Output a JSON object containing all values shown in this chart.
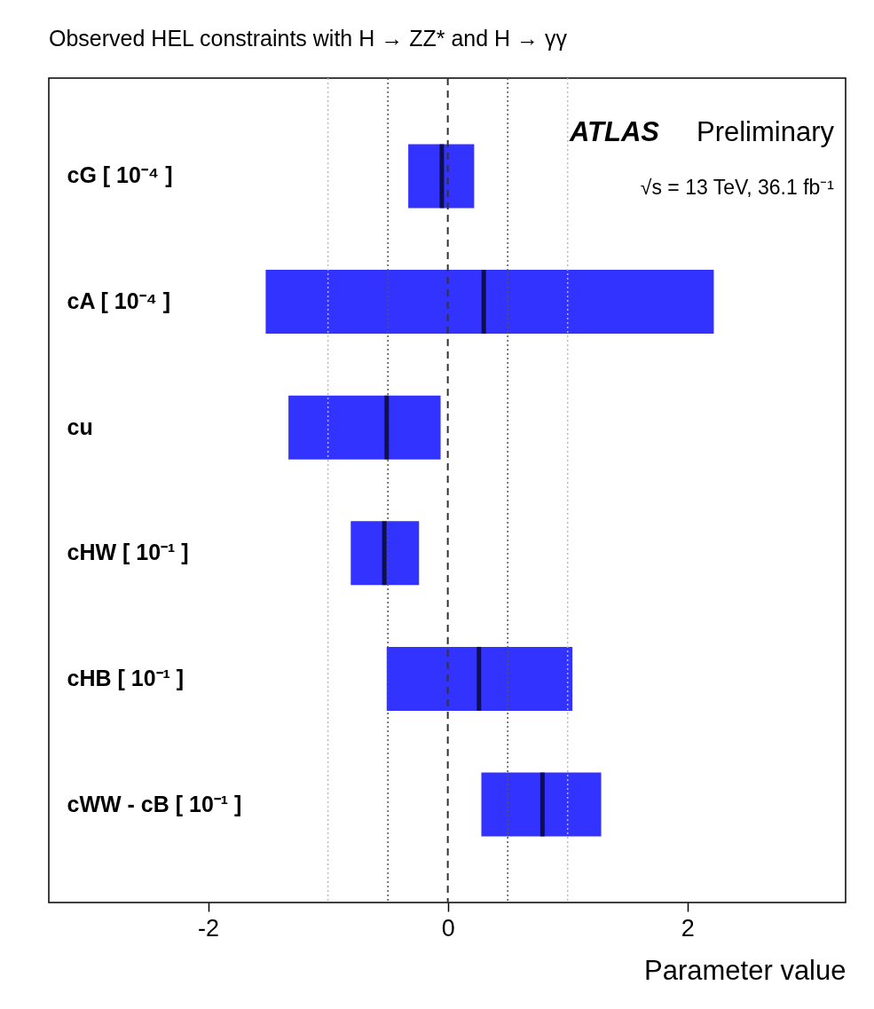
{
  "chart_data": {
    "type": "box",
    "orientation": "horizontal",
    "title": "Observed HEL constraints with H → ZZ* and H → γγ",
    "xlabel": "Parameter value",
    "categories": [
      "cG [ 10⁻⁴ ]",
      "cA [ 10⁻⁴ ]",
      "cu",
      "cHW [ 10⁻¹ ]",
      "cHB [ 10⁻¹ ]",
      "cWW - cB [ 10⁻¹ ]"
    ],
    "series": [
      {
        "color": "#3333ff",
        "boxes": [
          {
            "low": -0.33,
            "q1": -0.33,
            "median": -0.05,
            "q3": 0.22,
            "high": 0.22
          },
          {
            "low": -1.52,
            "q1": -1.52,
            "median": 0.3,
            "q3": 2.22,
            "high": 2.22
          },
          {
            "low": -1.33,
            "q1": -1.33,
            "median": -0.51,
            "q3": -0.06,
            "high": -0.06
          },
          {
            "low": -0.81,
            "q1": -0.81,
            "median": -0.53,
            "q3": -0.24,
            "high": -0.24
          },
          {
            "low": -0.51,
            "q1": -0.51,
            "median": 0.26,
            "q3": 1.04,
            "high": 1.04
          },
          {
            "low": 0.28,
            "q1": 0.28,
            "median": 0.79,
            "q3": 1.28,
            "high": 1.28
          }
        ]
      }
    ],
    "xlim": [
      -3.33,
      3.32
    ],
    "xticks": [
      -2,
      0,
      2
    ],
    "ref_lines": [
      {
        "axis": "x",
        "value": -1,
        "color": "#bbbbbb",
        "line_style": "dotted"
      },
      {
        "axis": "x",
        "value": -0.5,
        "color": "#555555",
        "line_style": "dotted"
      },
      {
        "axis": "x",
        "value": 0,
        "color": "#333333",
        "line_style": "dashed"
      },
      {
        "axis": "x",
        "value": 0.5,
        "color": "#555555",
        "line_style": "dotted"
      },
      {
        "axis": "x",
        "value": 1,
        "color": "#bbbbbb",
        "line_style": "dotted"
      }
    ],
    "annotations": [
      "ATLAS",
      "Preliminary",
      "√s = 13 TeV, 36.1 fb⁻¹"
    ],
    "grid": false
  }
}
